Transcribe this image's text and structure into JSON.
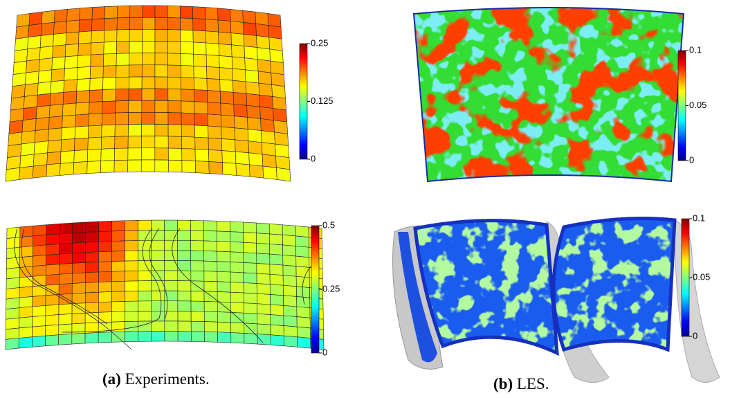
{
  "figures": [
    {
      "panel": "(a)",
      "caption": "Experiments.",
      "plots": [
        {
          "colorbar": {
            "lim": [
              0,
              0.25
            ],
            "ticks": [
              0,
              0.125,
              0.25
            ]
          }
        },
        {
          "colorbar": {
            "lim": [
              0,
              0.5
            ],
            "ticks": [
              0,
              0.25,
              0.5
            ]
          }
        }
      ]
    },
    {
      "panel": "(b)",
      "caption": "LES.",
      "plots": [
        {
          "colorbar": {
            "lim": [
              0,
              0.1
            ],
            "ticks": [
              0,
              0.05,
              0.1
            ]
          }
        },
        {
          "colorbar": {
            "lim": [
              0,
              0.1
            ],
            "ticks": [
              0,
              0.05,
              0.1
            ]
          }
        }
      ]
    }
  ]
}
